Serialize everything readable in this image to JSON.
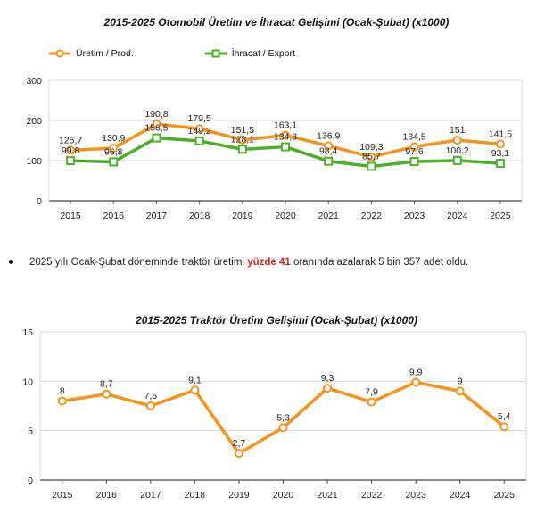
{
  "chart_data": [
    {
      "type": "line",
      "title": "2015-2025 Otomobil Üretim ve İhracat Gelişimi (Ocak-Şubat) (x1000)",
      "categories": [
        "2015",
        "2016",
        "2017",
        "2018",
        "2019",
        "2020",
        "2021",
        "2022",
        "2023",
        "2024",
        "2025"
      ],
      "ylim": [
        0,
        300
      ],
      "yticks": [
        0,
        100,
        200,
        300
      ],
      "grid": true,
      "legend_position": "top-left",
      "series": [
        {
          "name": "Üretim / Prod.",
          "color": "#f5931e",
          "values": [
            125.7,
            130.9,
            190.8,
            179.5,
            151.5,
            163.1,
            136.9,
            109.3,
            134.5,
            151,
            141.5
          ],
          "labels": [
            "125,7",
            "130,9",
            "190,8",
            "179,5",
            "151,5",
            "163,1",
            "136,9",
            "109,3",
            "134,5",
            "151",
            "141,5"
          ]
        },
        {
          "name": "İhracat / Export",
          "color": "#4caf2a",
          "values": [
            99.8,
            96.8,
            156.5,
            149.2,
            128.1,
            134.3,
            98.4,
            85.7,
            97.6,
            100.2,
            93.1
          ],
          "labels": [
            "99,8",
            "96,8",
            "156,5",
            "149,2",
            "128,1",
            "134,3",
            "98,4",
            "85,7",
            "97,6",
            "100,2",
            "93,1"
          ]
        }
      ]
    },
    {
      "type": "line",
      "title": "2015-2025 Traktör Üretim Gelişimi (Ocak-Şubat) (x1000)",
      "categories": [
        "2015",
        "2016",
        "2017",
        "2018",
        "2019",
        "2020",
        "2021",
        "2022",
        "2023",
        "2024",
        "2025"
      ],
      "ylim": [
        0,
        15
      ],
      "yticks": [
        0,
        5,
        10,
        15
      ],
      "grid": true,
      "series": [
        {
          "color": "#f5931e",
          "values": [
            8,
            8.7,
            7.5,
            9.1,
            2.7,
            5.3,
            9.3,
            7.9,
            9.9,
            9,
            5.4
          ],
          "labels": [
            "8",
            "8,7",
            "7,5",
            "9,1",
            "2,7",
            "5,3",
            "9,3",
            "7,9",
            "9,9",
            "9",
            "5,4"
          ]
        }
      ]
    }
  ],
  "bullet": {
    "before": "2025 yılı Ocak-Şubat döneminde traktör üretimi ",
    "highlight": "yüzde 41",
    "after": " oranında azalarak 5 bin 357 adet oldu."
  }
}
